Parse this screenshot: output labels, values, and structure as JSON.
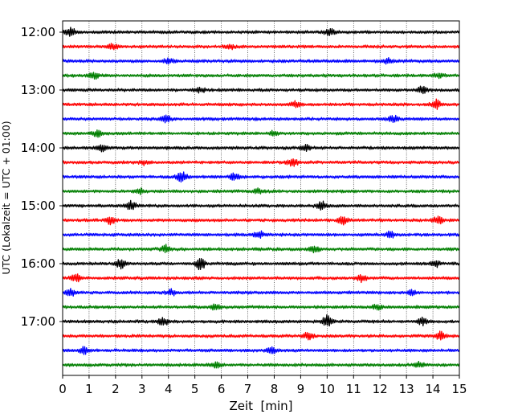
{
  "chart_data": {
    "type": "line",
    "chart_kind": "helicorder (seismogram drum plot)",
    "xlabel": "Zeit  [min]",
    "ylabel": "UTC (Lokalzeit = UTC + 01:00)",
    "xlim": [
      0,
      15
    ],
    "x_ticks": [
      "0",
      "1",
      "2",
      "3",
      "4",
      "5",
      "6",
      "7",
      "8",
      "9",
      "10",
      "11",
      "12",
      "13",
      "14",
      "15"
    ],
    "y_tick_labels": [
      "12:00",
      "13:00",
      "14:00",
      "15:00",
      "16:00",
      "17:00"
    ],
    "vertical_grid": "dotted at every minute",
    "horizontal_grid": false,
    "line_interval_minutes": 15,
    "start_time": "12:00",
    "line_color_cycle": [
      "#000000",
      "#ff0000",
      "#0000ff",
      "#007f00"
    ],
    "traces": [
      {
        "start": "12:00",
        "color": "#000000",
        "events": [
          {
            "min": 0.3,
            "amp": 0.7
          },
          {
            "min": 10.1,
            "amp": 0.5
          }
        ]
      },
      {
        "start": "12:15",
        "color": "#ff0000",
        "events": [
          {
            "min": 1.9,
            "amp": 0.5
          },
          {
            "min": 6.3,
            "amp": 0.4
          }
        ]
      },
      {
        "start": "12:30",
        "color": "#0000ff",
        "events": [
          {
            "min": 4.0,
            "amp": 0.4
          },
          {
            "min": 12.3,
            "amp": 0.4
          }
        ]
      },
      {
        "start": "12:45",
        "color": "#007f00",
        "events": [
          {
            "min": 1.2,
            "amp": 0.5
          },
          {
            "min": 14.2,
            "amp": 0.4
          }
        ]
      },
      {
        "start": "13:00",
        "color": "#000000",
        "events": [
          {
            "min": 5.2,
            "amp": 0.4
          },
          {
            "min": 13.6,
            "amp": 0.6
          }
        ]
      },
      {
        "start": "13:15",
        "color": "#ff0000",
        "events": [
          {
            "min": 8.8,
            "amp": 0.5
          },
          {
            "min": 14.1,
            "amp": 0.8
          }
        ]
      },
      {
        "start": "13:30",
        "color": "#0000ff",
        "events": [
          {
            "min": 3.9,
            "amp": 0.6
          },
          {
            "min": 12.5,
            "amp": 0.5
          }
        ]
      },
      {
        "start": "13:45",
        "color": "#007f00",
        "events": [
          {
            "min": 1.3,
            "amp": 0.5
          },
          {
            "min": 8.0,
            "amp": 0.4
          }
        ]
      },
      {
        "start": "14:00",
        "color": "#000000",
        "events": [
          {
            "min": 1.5,
            "amp": 0.6
          },
          {
            "min": 9.2,
            "amp": 0.5
          }
        ]
      },
      {
        "start": "14:15",
        "color": "#ff0000",
        "events": [
          {
            "min": 8.7,
            "amp": 0.7
          },
          {
            "min": 3.1,
            "amp": 0.4
          }
        ]
      },
      {
        "start": "14:30",
        "color": "#0000ff",
        "events": [
          {
            "min": 4.5,
            "amp": 0.9
          },
          {
            "min": 6.5,
            "amp": 0.6
          }
        ]
      },
      {
        "start": "14:45",
        "color": "#007f00",
        "events": [
          {
            "min": 2.9,
            "amp": 0.5
          },
          {
            "min": 7.4,
            "amp": 0.4
          }
        ]
      },
      {
        "start": "15:00",
        "color": "#000000",
        "events": [
          {
            "min": 2.6,
            "amp": 0.8
          },
          {
            "min": 9.8,
            "amp": 0.7
          }
        ]
      },
      {
        "start": "15:15",
        "color": "#ff0000",
        "events": [
          {
            "min": 1.8,
            "amp": 0.6
          },
          {
            "min": 10.6,
            "amp": 0.7
          },
          {
            "min": 14.2,
            "amp": 0.6
          }
        ]
      },
      {
        "start": "15:30",
        "color": "#0000ff",
        "events": [
          {
            "min": 7.4,
            "amp": 0.7
          },
          {
            "min": 12.4,
            "amp": 0.5
          }
        ]
      },
      {
        "start": "15:45",
        "color": "#007f00",
        "events": [
          {
            "min": 3.9,
            "amp": 0.7
          },
          {
            "min": 9.5,
            "amp": 0.6
          }
        ]
      },
      {
        "start": "16:00",
        "color": "#000000",
        "events": [
          {
            "min": 2.2,
            "amp": 0.9
          },
          {
            "min": 5.2,
            "amp": 1.0
          },
          {
            "min": 14.1,
            "amp": 0.5
          }
        ]
      },
      {
        "start": "16:15",
        "color": "#ff0000",
        "events": [
          {
            "min": 0.5,
            "amp": 0.7
          },
          {
            "min": 11.3,
            "amp": 0.6
          }
        ]
      },
      {
        "start": "16:30",
        "color": "#0000ff",
        "events": [
          {
            "min": 0.3,
            "amp": 0.6
          },
          {
            "min": 4.1,
            "amp": 0.5
          },
          {
            "min": 13.2,
            "amp": 0.4
          }
        ]
      },
      {
        "start": "16:45",
        "color": "#007f00",
        "events": [
          {
            "min": 5.8,
            "amp": 0.5
          },
          {
            "min": 11.9,
            "amp": 0.4
          }
        ]
      },
      {
        "start": "17:00",
        "color": "#000000",
        "events": [
          {
            "min": 3.8,
            "amp": 0.7
          },
          {
            "min": 10.0,
            "amp": 1.0
          },
          {
            "min": 13.6,
            "amp": 0.6
          }
        ]
      },
      {
        "start": "17:15",
        "color": "#ff0000",
        "events": [
          {
            "min": 9.3,
            "amp": 0.6
          },
          {
            "min": 14.3,
            "amp": 0.7
          }
        ]
      },
      {
        "start": "17:30",
        "color": "#0000ff",
        "events": [
          {
            "min": 0.8,
            "amp": 0.6
          },
          {
            "min": 7.9,
            "amp": 0.5
          }
        ]
      },
      {
        "start": "17:45",
        "color": "#007f00",
        "events": [
          {
            "min": 5.8,
            "amp": 0.5
          },
          {
            "min": 13.5,
            "amp": 0.5
          }
        ]
      }
    ]
  }
}
